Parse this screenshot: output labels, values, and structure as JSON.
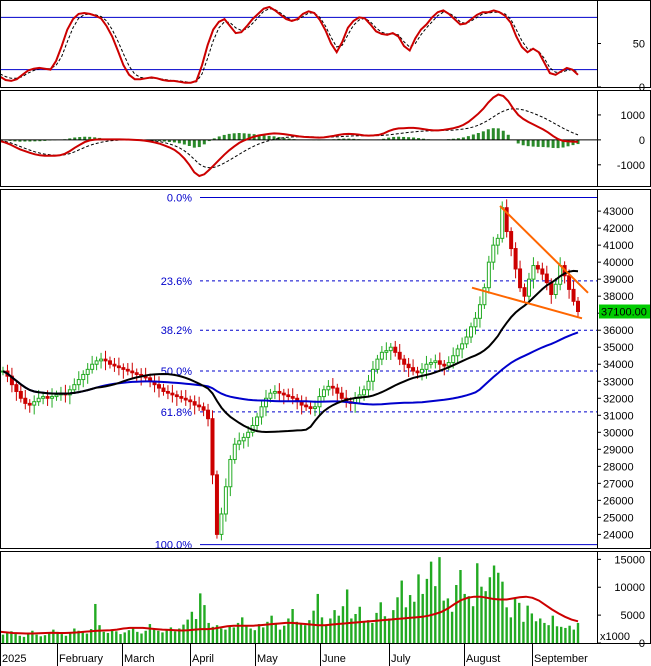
{
  "chart_data": [
    {
      "panel": "stochastic",
      "type": "line",
      "y_ticks": [
        "50",
        "0"
      ],
      "ylim": [
        0,
        100
      ],
      "reference_lines": [
        80,
        20
      ],
      "series": [
        {
          "color": "#cc0000",
          "values": [
            12,
            8,
            7,
            9,
            14,
            19,
            21,
            22,
            21,
            20,
            30,
            47,
            66,
            78,
            84,
            85,
            84,
            82,
            79,
            70,
            58,
            42,
            25,
            14,
            9,
            9,
            10,
            11,
            10,
            8,
            7,
            7,
            6,
            5,
            5,
            7,
            25,
            48,
            66,
            75,
            78,
            70,
            62,
            63,
            70,
            78,
            84,
            90,
            92,
            88,
            83,
            78,
            76,
            78,
            84,
            87,
            85,
            77,
            65,
            50,
            40,
            52,
            68,
            76,
            80,
            79,
            72,
            64,
            61,
            60,
            62,
            58,
            47,
            42,
            56,
            66,
            72,
            80,
            86,
            88,
            84,
            78,
            72,
            73,
            78,
            83,
            86,
            86,
            88,
            86,
            82,
            74,
            58,
            46,
            40,
            44,
            40,
            28,
            16,
            14,
            18,
            22,
            20,
            14
          ]
        },
        {
          "color": "#000000",
          "values": [
            15,
            12,
            10,
            10,
            12,
            16,
            19,
            21,
            21,
            21,
            25,
            35,
            52,
            68,
            79,
            83,
            84,
            83,
            81,
            76,
            66,
            53,
            38,
            24,
            15,
            11,
            10,
            10,
            10,
            9,
            8,
            7,
            7,
            6,
            5,
            6,
            15,
            33,
            53,
            68,
            75,
            74,
            68,
            65,
            67,
            73,
            80,
            87,
            90,
            89,
            85,
            80,
            77,
            77,
            81,
            85,
            85,
            80,
            70,
            57,
            46,
            48,
            60,
            71,
            77,
            79,
            75,
            68,
            63,
            61,
            61,
            60,
            52,
            46,
            50,
            60,
            68,
            75,
            82,
            86,
            85,
            81,
            75,
            73,
            76,
            80,
            84,
            85,
            86,
            86,
            84,
            78,
            66,
            53,
            44,
            43,
            41,
            33,
            22,
            17,
            17,
            19,
            20,
            17
          ]
        }
      ]
    },
    {
      "panel": "macd",
      "type": "line",
      "y_ticks": [
        "1000",
        "0",
        "-1000"
      ],
      "ylim": [
        -1850,
        2000
      ],
      "series": [
        {
          "color": "#cc0000",
          "values": [
            -50,
            -100,
            -180,
            -280,
            -380,
            -450,
            -520,
            -580,
            -620,
            -640,
            -640,
            -640,
            -620,
            -560,
            -450,
            -320,
            -200,
            -90,
            -20,
            10,
            20,
            20,
            20,
            20,
            20,
            15,
            10,
            0,
            -10,
            -30,
            -60,
            -100,
            -150,
            -220,
            -300,
            -400,
            -550,
            -750,
            -1000,
            -1300,
            -1450,
            -1380,
            -1200,
            -1000,
            -800,
            -600,
            -420,
            -260,
            -120,
            -20,
            60,
            130,
            180,
            210,
            240,
            260,
            250,
            230,
            200,
            170,
            140,
            120,
            110,
            100,
            90,
            100,
            130,
            160,
            200,
            230,
            240,
            230,
            210,
            180,
            170,
            180,
            200,
            260,
            350,
            420,
            460,
            470,
            480,
            480,
            460,
            430,
            400,
            380,
            380,
            400,
            430,
            470,
            520,
            600,
            720,
            880,
            1050,
            1250,
            1500,
            1700,
            1820,
            1760,
            1560,
            1260,
            1000,
            840,
            720,
            620,
            520,
            420,
            300,
            150,
            30,
            -40,
            -60,
            -70,
            -80
          ]
        },
        {
          "color": "#000000",
          "values": [
            -30,
            -60,
            -110,
            -180,
            -260,
            -340,
            -410,
            -480,
            -530,
            -570,
            -600,
            -620,
            -620,
            -600,
            -550,
            -480,
            -390,
            -300,
            -220,
            -160,
            -110,
            -70,
            -40,
            -20,
            -5,
            5,
            10,
            8,
            4,
            -5,
            -20,
            -40,
            -70,
            -110,
            -160,
            -230,
            -320,
            -440,
            -590,
            -780,
            -970,
            -1080,
            -1120,
            -1100,
            -1030,
            -930,
            -820,
            -700,
            -580,
            -460,
            -350,
            -250,
            -160,
            -90,
            -30,
            20,
            60,
            90,
            110,
            120,
            125,
            125,
            122,
            118,
            113,
            110,
            112,
            118,
            128,
            140,
            152,
            160,
            165,
            166,
            166,
            168,
            172,
            182,
            200,
            224,
            250,
            275,
            300,
            320,
            338,
            350,
            360,
            366,
            370,
            375,
            382,
            393,
            410,
            435,
            470,
            520,
            590,
            680,
            790,
            920,
            1050,
            1150,
            1220,
            1250,
            1240,
            1200,
            1140,
            1070,
            990,
            900,
            800,
            690,
            580,
            470,
            370,
            280,
            200
          ]
        }
      ]
    },
    {
      "panel": "price",
      "type": "candlestick",
      "x_months": [
        "2025",
        "February",
        "March",
        "April",
        "May",
        "June",
        "July",
        "August",
        "September"
      ],
      "y_ticks": [
        "43000",
        "42000",
        "41000",
        "40000",
        "39000",
        "38000",
        "37000",
        "36000",
        "35000",
        "34000",
        "33000",
        "32000",
        "31000",
        "30000",
        "29000",
        "28000",
        "27000",
        "26000",
        "25000",
        "24000"
      ],
      "ylim": [
        23200,
        44300
      ],
      "last_price_label": "37100.00",
      "last_price": 37100,
      "fibonacci": [
        {
          "label": "0.0%",
          "value": 43800
        },
        {
          "label": "23.6%",
          "value": 38900
        },
        {
          "label": "38.2%",
          "value": 36000
        },
        {
          "label": "50.0%",
          "value": 33600
        },
        {
          "label": "61.8%",
          "value": 31200
        },
        {
          "label": "100.0%",
          "value": 23400
        }
      ],
      "closes": [
        33600,
        33300,
        32800,
        32400,
        32000,
        31700,
        31600,
        31800,
        32000,
        32100,
        32000,
        32100,
        32200,
        32300,
        32200,
        32500,
        32800,
        33100,
        33400,
        33700,
        34000,
        34200,
        34300,
        34200,
        34000,
        33900,
        33800,
        33700,
        33600,
        33500,
        33400,
        33300,
        33200,
        33000,
        32800,
        32600,
        32400,
        32300,
        32200,
        32100,
        32000,
        31900,
        31800,
        31600,
        31500,
        31300,
        30800,
        27500,
        24000,
        25200,
        26800,
        28400,
        29300,
        29500,
        29700,
        30000,
        30400,
        30900,
        31500,
        32000,
        32300,
        32400,
        32300,
        32200,
        32100,
        32000,
        31800,
        31600,
        31500,
        31400,
        31500,
        32100,
        32500,
        32700,
        32600,
        32300,
        32000,
        31800,
        31700,
        32000,
        32200,
        32500,
        33000,
        33700,
        34300,
        34700,
        34800,
        35000,
        34700,
        34300,
        34000,
        33800,
        33600,
        33500,
        33700,
        34000,
        34100,
        34200,
        34000,
        33900,
        34100,
        34500,
        34900,
        35200,
        35600,
        36200,
        36700,
        37500,
        38500,
        40000,
        41000,
        41400,
        43200,
        41800,
        40800,
        39600,
        38500,
        38000,
        39000,
        39800,
        39600,
        39300,
        38800,
        38100,
        38700,
        39800,
        39200,
        38400,
        37700,
        37100
      ]
    },
    {
      "panel": "volume",
      "type": "bar",
      "y_ticks": [
        "15000",
        "10000",
        "5000",
        "0"
      ],
      "y_unit": "x1000",
      "ylim": [
        0,
        16500
      ],
      "values": [
        1500,
        1800,
        2100,
        1600,
        1300,
        1100,
        1700,
        2200,
        1500,
        1200,
        1400,
        1900,
        2400,
        2000,
        1600,
        1300,
        1800,
        2600,
        2200,
        1900,
        1700,
        2500,
        7000,
        3200,
        2000,
        1800,
        2400,
        2100,
        1600,
        1900,
        2300,
        2700,
        2000,
        1700,
        2200,
        3400,
        2600,
        2200,
        1900,
        2400,
        2800,
        2100,
        2600,
        3300,
        4200,
        5600,
        4300,
        8900,
        6800,
        3600,
        2900,
        3200,
        2600,
        2400,
        3100,
        2800,
        3600,
        4600,
        3100,
        2600,
        2300,
        3400,
        2800,
        3800,
        4900,
        3600,
        2400,
        3100,
        4400,
        6100,
        3800,
        3500,
        3200,
        4100,
        5800,
        8800,
        4600,
        3200,
        4400,
        5900,
        4900,
        6600,
        9600,
        4400,
        5200,
        6500,
        3900,
        4100,
        3600,
        5400,
        7300,
        4800,
        4400,
        5900,
        8200,
        11200,
        6400,
        8600,
        7400,
        12300,
        8800,
        11500,
        14600,
        10200,
        15400,
        7600,
        8000,
        5600,
        10400,
        13100,
        8800,
        8400,
        6600,
        14300,
        10100,
        9300,
        11800,
        13900,
        12600,
        11000,
        6400,
        4600,
        8100,
        7200,
        3800,
        6700,
        5300,
        3900,
        4400,
        3600,
        3200,
        4900,
        3000,
        2900,
        2700,
        3100,
        2400,
        3600
      ],
      "ma_series": {
        "color": "#cc0000",
        "values": [
          2000,
          1900,
          1800,
          1750,
          1700,
          1700,
          1750,
          1800,
          1850,
          1800,
          1800,
          1850,
          1900,
          2000,
          2100,
          2200,
          2250,
          2300,
          2400,
          2600,
          2700,
          2700,
          2700,
          2600,
          2500,
          2400,
          2350,
          2300,
          2250,
          2300,
          2400,
          2500,
          2500,
          2600,
          2800,
          3000,
          3100,
          3100,
          3100,
          3100,
          3200,
          3300,
          3400,
          3500,
          3600,
          3600,
          3500,
          3400,
          3300,
          3200,
          3200,
          3300,
          3400,
          3500,
          3600,
          3700,
          3800,
          3900,
          4000,
          4100,
          4200,
          4300,
          4400,
          4500,
          4600,
          4700,
          4900,
          5200,
          5600,
          6200,
          7000,
          7700,
          8100,
          8300,
          8300,
          8100,
          7900,
          7800,
          7800,
          8000,
          8200,
          8300,
          8100,
          7600,
          6800,
          6000,
          5300,
          4700,
          4200,
          3900
        ]
      }
    }
  ]
}
